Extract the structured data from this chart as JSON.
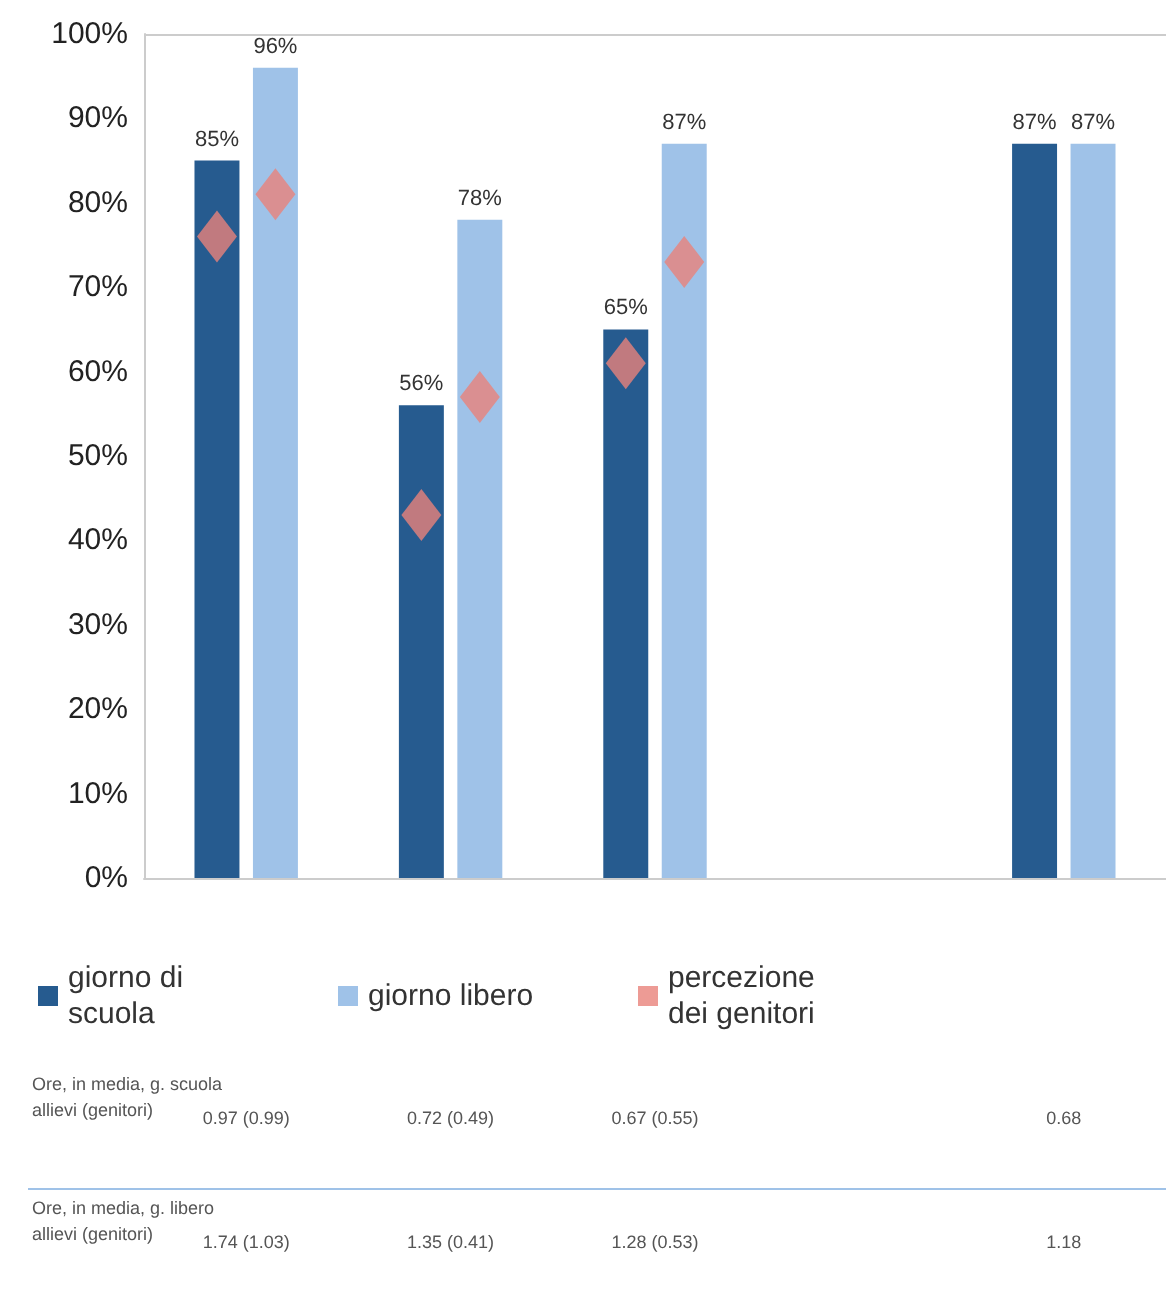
{
  "chart_data": {
    "type": "bar",
    "categories": [
      null,
      null,
      null,
      null,
      null
    ],
    "series": [
      {
        "name": "giorno di scuola",
        "color": "#265b8f",
        "values": [
          85,
          56,
          65,
          null,
          87
        ],
        "value_labels": [
          "85%",
          "56%",
          "65%",
          null,
          "87%"
        ]
      },
      {
        "name": "giorno libero",
        "color": "#9fc2e8",
        "values": [
          96,
          78,
          87,
          null,
          87
        ],
        "value_labels": [
          "96%",
          "78%",
          "87%",
          null,
          "87%"
        ]
      },
      {
        "name": "percezione dei genitori",
        "type": "scatter",
        "color": "#e8827a",
        "values": [
          76,
          43,
          61,
          null,
          null
        ]
      },
      {
        "type": "scatter",
        "color": "#e8827a",
        "values": [
          81,
          57,
          73,
          null,
          null
        ]
      }
    ],
    "ylim": [
      0,
      100
    ],
    "yticks": [
      {
        "value": 0,
        "label": "0%"
      },
      {
        "value": 10,
        "label": "10%"
      },
      {
        "value": 20,
        "label": "20%"
      },
      {
        "value": 30,
        "label": "30%"
      },
      {
        "value": 40,
        "label": "40%"
      },
      {
        "value": 50,
        "label": "50%"
      },
      {
        "value": 60,
        "label": "60%"
      },
      {
        "value": 70,
        "label": "70%"
      },
      {
        "value": 80,
        "label": "80%"
      },
      {
        "value": 90,
        "label": "90%"
      },
      {
        "value": 100,
        "label": "100%"
      }
    ],
    "grid": false,
    "legend": "bottom",
    "marker": "diamond",
    "annotations": [
      "Ore, in media, g. scuola allievi (genitori)",
      "0.97 (0.99)",
      "0.72 (0.49)",
      "0.67 (0.55)",
      "0.68",
      "Ore, in media, g. libero allievi (genitori)",
      "1.74 (1.03)",
      "1.35 (0.41)",
      "1.28 (0.53)",
      "1.18"
    ]
  }
}
